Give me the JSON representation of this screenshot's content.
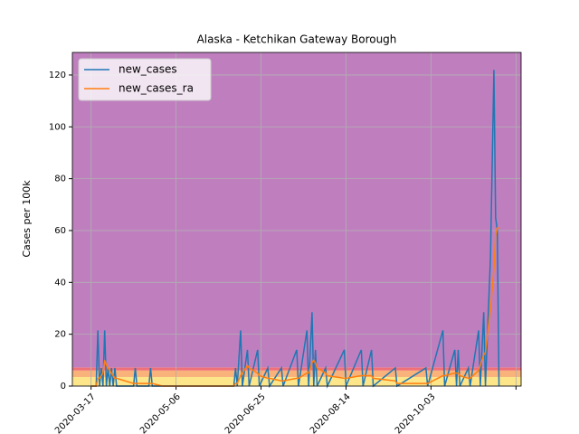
{
  "chart_data": {
    "type": "line",
    "title": "Alaska - Ketchikan Gateway Borough",
    "ylabel": "Cases per 100k",
    "x": [
      "2020-03-17",
      "2020-03-20",
      "2020-03-21",
      "2020-03-22",
      "2020-03-23",
      "2020-03-24",
      "2020-03-25",
      "2020-03-26",
      "2020-03-27",
      "2020-03-28",
      "2020-03-29",
      "2020-03-30",
      "2020-03-31",
      "2020-04-01",
      "2020-04-11",
      "2020-04-12",
      "2020-04-13",
      "2020-04-20",
      "2020-04-21",
      "2020-04-22",
      "2020-04-28",
      "2020-06-09",
      "2020-06-10",
      "2020-06-11",
      "2020-06-13",
      "2020-06-14",
      "2020-06-17",
      "2020-06-18",
      "2020-06-23",
      "2020-06-24",
      "2020-06-29",
      "2020-06-30",
      "2020-07-07",
      "2020-07-08",
      "2020-07-16",
      "2020-07-17",
      "2020-07-22",
      "2020-07-23",
      "2020-07-25",
      "2020-07-26",
      "2020-07-27",
      "2020-07-28",
      "2020-08-02",
      "2020-08-03",
      "2020-08-13",
      "2020-08-14",
      "2020-08-23",
      "2020-08-24",
      "2020-08-29",
      "2020-08-30",
      "2020-09-12",
      "2020-09-13",
      "2020-09-30",
      "2020-10-01",
      "2020-10-10",
      "2020-10-11",
      "2020-10-17",
      "2020-10-18",
      "2020-10-19",
      "2020-10-20",
      "2020-10-25",
      "2020-10-26",
      "2020-10-31",
      "2020-11-01",
      "2020-11-03",
      "2020-11-04",
      "2020-11-07",
      "2020-11-09",
      "2020-11-10",
      "2020-11-11",
      "2020-11-12"
    ],
    "series": [
      {
        "name": "new_cases",
        "color": "#1f77b4",
        "values": [
          0,
          0,
          21.5,
          0,
          7,
          0,
          21.5,
          0,
          7,
          0,
          7,
          0,
          7,
          0,
          0,
          7,
          0,
          0,
          7,
          0,
          0,
          0,
          7,
          0,
          21.5,
          0,
          14,
          0,
          14,
          0,
          7,
          0,
          7,
          0,
          14,
          0,
          21.5,
          0,
          28.5,
          0,
          14,
          0,
          7,
          0,
          14,
          0,
          14,
          0,
          14,
          0,
          7,
          0,
          7,
          0,
          21.5,
          0,
          14,
          0,
          14,
          0,
          7,
          0,
          21.5,
          0,
          28.5,
          0,
          50,
          122,
          65,
          60,
          0
        ]
      },
      {
        "name": "new_cases_ra",
        "color": "#ff7f0e",
        "values": [
          0,
          0,
          3,
          3,
          4,
          5,
          10,
          8,
          7,
          6,
          5,
          4,
          3,
          3,
          1,
          1,
          1,
          1,
          1,
          1,
          0,
          0,
          1,
          1,
          4,
          5,
          8,
          7,
          5,
          4,
          3,
          3,
          2,
          2,
          3,
          3,
          5,
          5,
          9,
          10,
          9,
          7,
          5,
          4,
          3,
          3,
          4,
          4,
          4,
          3,
          2,
          1,
          1,
          1,
          4,
          4,
          5,
          5,
          5,
          4,
          3,
          3,
          6,
          8,
          12,
          13,
          30,
          45,
          58,
          61,
          61
        ]
      }
    ],
    "bands": [
      {
        "from": 0,
        "to": 3.5,
        "color": "#fde58a"
      },
      {
        "from": 3.5,
        "to": 6,
        "color": "#f8b27a"
      },
      {
        "from": 6,
        "to": 7.2,
        "color": "#f07078"
      },
      {
        "from": 7.2,
        "to": 128.7,
        "color": "#bf7fbf"
      }
    ],
    "xlim": [
      "2020-03-06",
      "2020-11-25"
    ],
    "xticks": [
      {
        "value": "2020-03-17",
        "label": "2020-03-17"
      },
      {
        "value": "2020-05-06",
        "label": "2020-05-06"
      },
      {
        "value": "2020-06-25",
        "label": "2020-06-25"
      },
      {
        "value": "2020-08-14",
        "label": "2020-08-14"
      },
      {
        "value": "2020-10-03",
        "label": "2020-10-03"
      },
      {
        "value": "2020-11-22",
        "label": null
      }
    ],
    "ylim": [
      0,
      128.7
    ],
    "yticks": [
      0,
      20,
      40,
      60,
      80,
      100,
      120
    ],
    "grid": true,
    "legend": "upper left"
  }
}
